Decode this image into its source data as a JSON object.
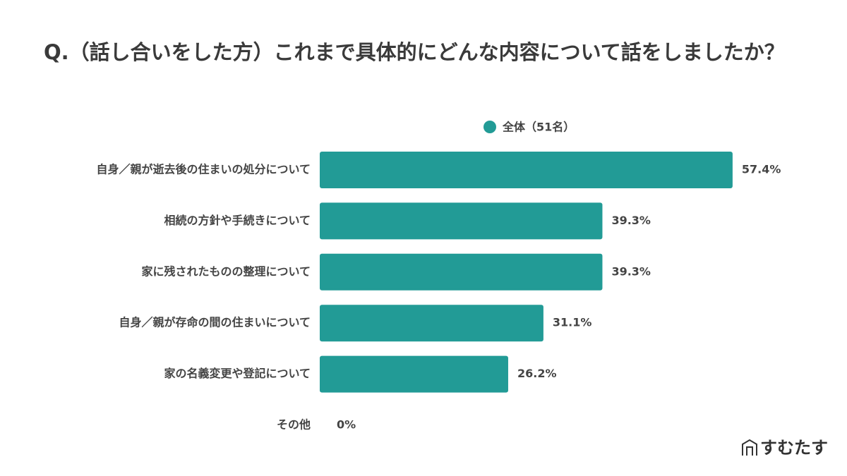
{
  "chart_data": {
    "type": "hbar",
    "title": "Q.（話し合いをした方）これまで具体的にどんな内容について話をしましたか？",
    "categories": [
      "自身／親が逝去後の住まいの処分について",
      "相続の方針や手続きについて",
      "家に残されたものの整理について",
      "自身／親が存命の間の住まいについて",
      "家の名義変更や登記について",
      "その他"
    ],
    "series": [
      {
        "name": "全体（51名）",
        "color": "#229b96",
        "values": [
          57.4,
          39.3,
          39.3,
          31.1,
          26.2,
          0
        ],
        "value_labels": [
          "57.4%",
          "39.3%",
          "39.3%",
          "31.1%",
          "26.2%",
          "0%"
        ]
      }
    ]
  },
  "logo": "すむたす"
}
